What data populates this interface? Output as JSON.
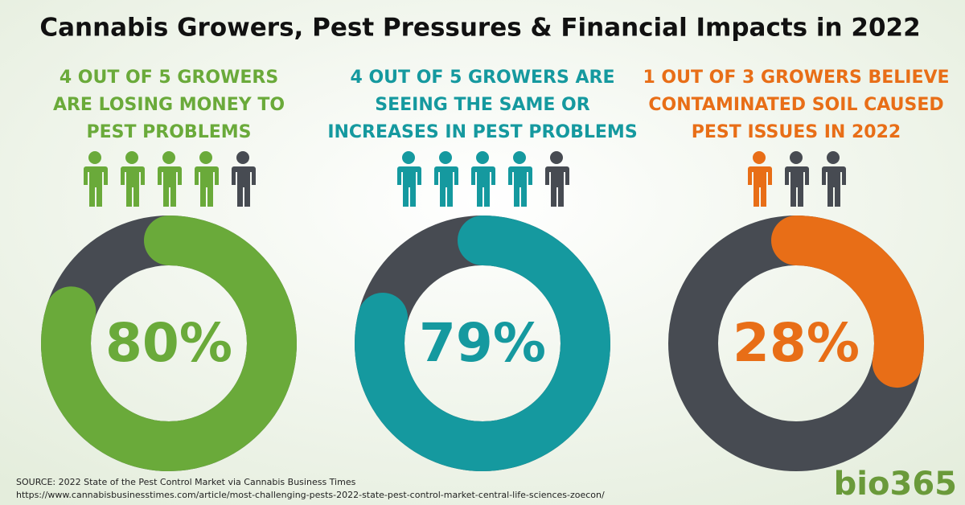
{
  "title": "Cannabis Growers, Pest Pressures & Financial Impacts in 2022",
  "chart_data": [
    {
      "type": "donut",
      "title_lines": [
        "4 OUT OF 5 GROWERS",
        "ARE LOSING MONEY TO",
        "PEST PROBLEMS"
      ],
      "value": 80,
      "value_label": "80%",
      "range": [
        0,
        100
      ],
      "color": "#6aaa3a",
      "rest_color": "#474b52",
      "icons_highlighted": 4,
      "icons_total": 5
    },
    {
      "type": "donut",
      "title_lines": [
        "4 OUT OF 5 GROWERS ARE",
        "SEEING THE SAME OR",
        "INCREASES IN PEST PROBLEMS"
      ],
      "value": 79,
      "value_label": "79%",
      "range": [
        0,
        100
      ],
      "color": "#15999f",
      "rest_color": "#474b52",
      "icons_highlighted": 4,
      "icons_total": 5
    },
    {
      "type": "donut",
      "title_lines": [
        "1 OUT OF 3 GROWERS BELIEVE",
        "CONTAMINATED SOIL CAUSED",
        "PEST ISSUES IN 2022"
      ],
      "value": 28,
      "value_label": "28%",
      "range": [
        0,
        100
      ],
      "color": "#e86e17",
      "rest_color": "#474b52",
      "icons_highlighted": 1,
      "icons_total": 3
    }
  ],
  "source": "SOURCE: 2022 State of the Pest Control Market via  Cannabis Business Times",
  "url": "https://www.cannabisbusinesstimes.com/article/most-challenging-pests-2022-state-pest-control-market-central-life-sciences-zoecon/",
  "logo": "bio365"
}
